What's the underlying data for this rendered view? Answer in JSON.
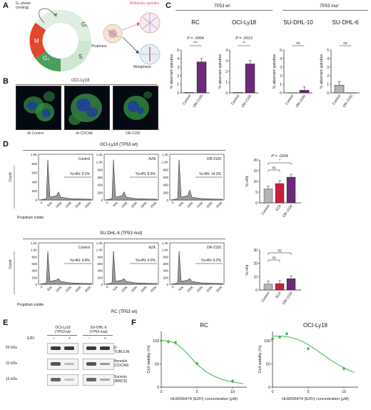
{
  "panels": {
    "A": "A",
    "B": "B",
    "C": "C",
    "D": "D",
    "E": "E",
    "F": "F"
  },
  "panelA": {
    "g0_phase": "G₀ phase (resting)",
    "phases": [
      "G₁",
      "S",
      "G₂",
      "M"
    ],
    "prophase": "Prophase",
    "metaphase": "Metaphase",
    "multipolar": "Multipolar spindles",
    "colors": {
      "g1": "#dfeee0",
      "s": "#cfe6d1",
      "g2": "#4a9f5a",
      "m": "#e0492b"
    }
  },
  "panelB": {
    "title": "OCI-Ly18",
    "labels": [
      "sh Control",
      "sh CDCA8",
      "OR-2100"
    ]
  },
  "panelC": {
    "wt_header": "TP53 wt",
    "mut_header": "TP53 mut",
    "ylabel": "% aberrant spindles",
    "colors": {
      "control": "#ffffff",
      "drug": "#6b2a75",
      "control_mut": "#b3b3b3"
    },
    "charts": [
      {
        "title": "RC",
        "p": "P = .0004",
        "sig": "***",
        "ticks": [
          "0",
          "1",
          "2",
          "3",
          "4",
          "5"
        ],
        "categories": [
          "Control",
          "OR-2100"
        ],
        "values": [
          0.05,
          3.6
        ],
        "ylim": [
          0,
          5
        ]
      },
      {
        "title": "OCI-Ly18",
        "p": "P = .0013",
        "sig": "**",
        "ticks": [
          "0",
          "1",
          "2",
          "3",
          "4"
        ],
        "categories": [
          "Control",
          "OR-2100"
        ],
        "values": [
          0.05,
          2.7
        ],
        "ylim": [
          0,
          4
        ]
      },
      {
        "title": "SU-DHL-10",
        "p": "",
        "sig": "ns",
        "ticks": [
          "0",
          "1",
          "2",
          "3",
          "4",
          "5"
        ],
        "categories": [
          "Control",
          "OR-2100"
        ],
        "values": [
          0.0,
          0.3
        ],
        "ylim": [
          0,
          5
        ]
      },
      {
        "title": "SU-DHL-6",
        "p": "",
        "sig": "ns",
        "ticks": [
          "0",
          "1",
          "2",
          "3",
          "4",
          "5"
        ],
        "categories": [
          "Control",
          "OR-2100"
        ],
        "values": [
          0.9,
          0.0
        ],
        "ylim": [
          0,
          5
        ]
      }
    ]
  },
  "panelD": {
    "row1_title": "OCI-Ly18 (TP53 wt)",
    "row2_title": "SU-DHL-6 (TP53 mut)",
    "xaxis": "Propidium iodide",
    "yaxis": "Count",
    "row1_ticks": [
      "0",
      "200",
      "400",
      "600",
      "800",
      "1.0K"
    ],
    "row2_ticks": [
      "0",
      "200",
      "400",
      "600",
      "800",
      "1.0K",
      "1.2K"
    ],
    "row1_ticks_b": [
      "0",
      "200",
      "400",
      "600",
      "800",
      "1.0K",
      "1.2K"
    ],
    "xticks": [
      "0",
      "50K",
      "100K",
      "150K",
      "200K",
      "250K"
    ],
    "rc_caption": "RC (TP53 wt)",
    "hist_row1": [
      {
        "name": "Control",
        "text": "%>4N: 4.2%"
      },
      {
        "name": "AZA",
        "text": "%>4N: 8.5%"
      },
      {
        "name": "OR-2100",
        "text": "%>4N: 14.2%"
      }
    ],
    "hist_row2": [
      {
        "name": "Control",
        "text": "%>4N: 4.8%"
      },
      {
        "name": "AZA",
        "text": "%>4N: 4.0%"
      },
      {
        "name": "OR-2100",
        "text": "%>4N: 6.2%"
      }
    ],
    "bar_ylabel": "%>4N",
    "bar1": {
      "p": "P = .0204",
      "sig1": "ns",
      "sig2": "*",
      "ticks": [
        "0",
        "5",
        "10",
        "15",
        "20"
      ],
      "categories": [
        "Control",
        "AZA",
        "OR-2100"
      ],
      "values": [
        6.5,
        9.0,
        12.0
      ],
      "ylim": [
        0,
        20
      ]
    },
    "bar2": {
      "sig1": "ns",
      "sig2": "ns",
      "ticks": [
        "0",
        "10",
        "20",
        "30"
      ],
      "categories": [
        "Control",
        "AZA",
        "OR-2100"
      ],
      "values": [
        4.5,
        4.8,
        8.5
      ],
      "ylim": [
        0,
        30
      ]
    },
    "bar_colors": [
      "#b3b3b3",
      "#c8203c",
      "#6b2a75"
    ]
  },
  "panelE": {
    "col1": "OCI-Ly18",
    "col1b": "(TP53 wt)",
    "col2": "SU-DHL-6",
    "col2b": "(TP53 mut)",
    "treatment": "E2Fi",
    "minus": "–",
    "plus": "+",
    "rows": [
      {
        "kda": "55 kDa",
        "protein": "β-TUBULIN",
        "protein2": ""
      },
      {
        "kda": "31 kDa",
        "protein": "Borealin",
        "protein2": "(CDCA8)"
      },
      {
        "kda": "16 kDa",
        "protein": "Survivin",
        "protein2": "(BIRC5)"
      }
    ]
  },
  "panelF": {
    "charts": [
      {
        "title": "RC",
        "ylabel": "Cell viability (%)",
        "xlabel": "HLM006474 (E2Fi) concentration (μM)",
        "yticks": [
          "0",
          "50",
          "100"
        ],
        "xticks": [
          "0",
          "5",
          "10"
        ]
      },
      {
        "title": "OCI-Ly18",
        "ylabel": "Cell viability (%)",
        "xlabel": "HLM006474 (E2Fi) concentration (μM)",
        "yticks": [
          "0",
          "50",
          "100"
        ],
        "xticks": [
          "0",
          "5",
          "10"
        ]
      }
    ],
    "color": "#3cb54a"
  },
  "chart_data": [
    {
      "type": "bar",
      "title": "RC",
      "categories": [
        "Control",
        "OR-2100"
      ],
      "values": [
        0.05,
        3.6
      ],
      "ylabel": "% aberrant spindles",
      "ylim": [
        0,
        5
      ]
    },
    {
      "type": "bar",
      "title": "OCI-Ly18",
      "categories": [
        "Control",
        "OR-2100"
      ],
      "values": [
        0.05,
        2.7
      ],
      "ylabel": "% aberrant spindles",
      "ylim": [
        0,
        4
      ]
    },
    {
      "type": "bar",
      "title": "SU-DHL-10",
      "categories": [
        "Control",
        "OR-2100"
      ],
      "values": [
        0.0,
        0.3
      ],
      "ylabel": "% aberrant spindles",
      "ylim": [
        0,
        5
      ]
    },
    {
      "type": "bar",
      "title": "SU-DHL-6",
      "categories": [
        "Control",
        "OR-2100"
      ],
      "values": [
        0.9,
        0.0
      ],
      "ylabel": "% aberrant spindles",
      "ylim": [
        0,
        5
      ]
    },
    {
      "type": "bar",
      "title": "",
      "categories": [
        "Control",
        "AZA",
        "OR-2100"
      ],
      "values": [
        6.5,
        9.0,
        12.0
      ],
      "ylabel": "%>4N",
      "ylim": [
        0,
        20
      ]
    },
    {
      "type": "bar",
      "title": "",
      "categories": [
        "Control",
        "AZA",
        "OR-2100"
      ],
      "values": [
        4.5,
        4.8,
        8.5
      ],
      "ylabel": "%>4N",
      "ylim": [
        0,
        30
      ]
    },
    {
      "type": "scatter",
      "title": "RC",
      "x": [
        0,
        1,
        2,
        5,
        10
      ],
      "y": [
        100,
        98,
        96,
        51,
        13
      ],
      "xlabel": "HLM006474 (E2Fi) concentration (μM)",
      "ylabel": "Cell viability (%)",
      "ylim": [
        0,
        120
      ]
    },
    {
      "type": "scatter",
      "title": "OCI-Ly18",
      "x": [
        0,
        1,
        2,
        5,
        10
      ],
      "y": [
        104,
        108,
        115,
        83,
        40
      ],
      "xlabel": "HLM006474 (E2Fi) concentration (μM)",
      "ylabel": "Cell viability (%)",
      "ylim": [
        0,
        120
      ]
    }
  ]
}
